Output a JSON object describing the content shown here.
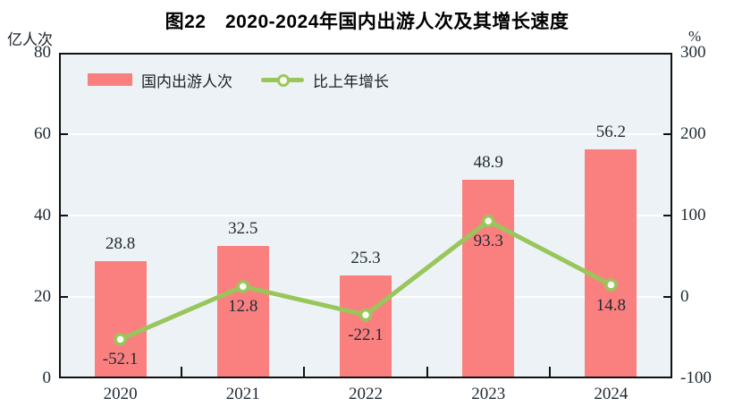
{
  "title": "图22　2020-2024年国内出游人次及其增长速度",
  "left_axis_unit": "亿人次",
  "right_axis_unit": "%",
  "legend": {
    "bar_label": "国内出游人次",
    "line_label": "比上年增长"
  },
  "colors": {
    "bar": "#FA8080",
    "line": "#98C65A",
    "marker_fill": "#FDFEF4",
    "plot_bg": "#ECF2F5",
    "grid": "#FFFFFF",
    "axis": "#111111",
    "text": "#1F2A33"
  },
  "chart_data": {
    "type": "bar",
    "subtype": "bar+line dual axis",
    "title": "图22 2020-2024年国内出游人次及其增长速度",
    "categories": [
      "2020",
      "2021",
      "2022",
      "2023",
      "2024"
    ],
    "series": [
      {
        "name": "国内出游人次",
        "type": "bar",
        "axis": "left",
        "values": [
          28.8,
          32.5,
          25.3,
          48.9,
          56.2
        ],
        "labels": [
          "28.8",
          "32.5",
          "25.3",
          "48.9",
          "56.2"
        ]
      },
      {
        "name": "比上年增长",
        "type": "line",
        "axis": "right",
        "values": [
          -52.1,
          12.8,
          -22.1,
          93.3,
          14.8
        ],
        "labels": [
          "-52.1",
          "12.8",
          "-22.1",
          "93.3",
          "14.8"
        ]
      }
    ],
    "left_axis": {
      "unit": "亿人次",
      "min": 0,
      "max": 80,
      "ticks": [
        0,
        20,
        40,
        60,
        80
      ],
      "tick_labels": [
        "0",
        "20",
        "40",
        "60",
        "80"
      ]
    },
    "right_axis": {
      "unit": "%",
      "min": -100,
      "max": 300,
      "ticks": [
        -100,
        0,
        100,
        200,
        300
      ],
      "tick_labels": [
        "-100",
        "0",
        "100",
        "200",
        "300"
      ]
    },
    "grid": true,
    "legend_position": "top-left inside plot"
  }
}
